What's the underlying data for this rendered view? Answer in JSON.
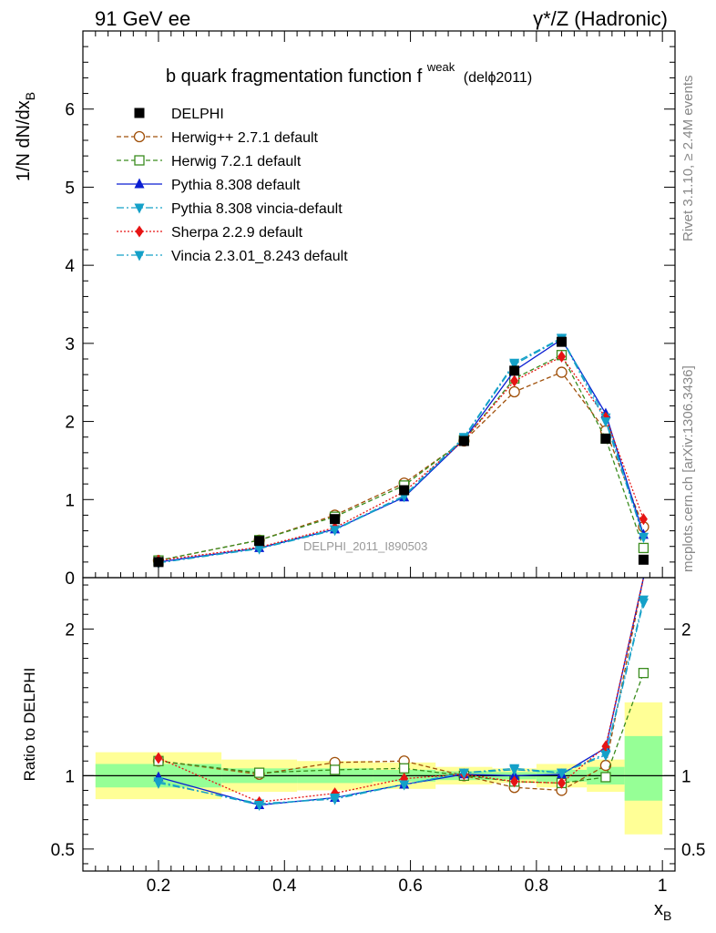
{
  "header": {
    "energy": "91 GeV ee",
    "process": "γ*/Z (Hadronic)",
    "title_main": "b quark fragmentation function f",
    "title_sup": "weak",
    "title_ref": "(delϕ2011)"
  },
  "side": {
    "rivet": "Rivet 3.1.10, ≥ 2.4M events",
    "mcplots": "mcplots.cern.ch [arXiv:1306.3436]"
  },
  "watermark": "DELPHI_2011_I890503",
  "main_ylabel_a": "1/N dN/dx",
  "main_ylabel_sub": "B",
  "ratio_ylabel": "Ratio to DELPHI",
  "xlabel_a": "x",
  "xlabel_sub": "B",
  "colors": {
    "data": "#000000",
    "herwigpp": "#a0500a",
    "herwig7": "#3a8c1e",
    "pythia": "#0a1ed2",
    "pythia_vincia": "#14a0c8",
    "sherpa": "#e61414",
    "vincia": "#14a0c8",
    "band_outer": "#ffff96",
    "band_inner": "#96ff96"
  },
  "chart_data": {
    "type": "line",
    "x": [
      0.2,
      0.36,
      0.48,
      0.59,
      0.685,
      0.765,
      0.84,
      0.91,
      0.97
    ],
    "xlim": [
      0.08,
      1.02
    ],
    "main": {
      "ylim": [
        0,
        7
      ],
      "yticks": [
        0,
        1,
        2,
        3,
        4,
        5,
        6
      ]
    },
    "ratio": {
      "ylim": [
        0.35,
        2.35
      ],
      "yticks": [
        0.5,
        1,
        2
      ],
      "ylabels_right": [
        "0.5",
        "1",
        "2"
      ]
    },
    "xticks": [
      0.2,
      0.4,
      0.6,
      0.8,
      1.0
    ],
    "xtick_labels": [
      "0.2",
      "0.4",
      "0.6",
      "0.8",
      "1"
    ],
    "data": {
      "name": "DELPHI",
      "values": [
        0.2,
        0.47,
        0.75,
        1.12,
        1.75,
        2.65,
        3.02,
        1.78,
        0.23
      ],
      "bins": [
        [
          0.1,
          0.3
        ],
        [
          0.3,
          0.42
        ],
        [
          0.42,
          0.54
        ],
        [
          0.54,
          0.64
        ],
        [
          0.64,
          0.73
        ],
        [
          0.73,
          0.8
        ],
        [
          0.8,
          0.88
        ],
        [
          0.88,
          0.94
        ],
        [
          0.94,
          1.0
        ]
      ],
      "band_outer": [
        [
          0.84,
          1.16
        ],
        [
          0.89,
          1.11
        ],
        [
          0.9,
          1.1
        ],
        [
          0.91,
          1.09
        ],
        [
          0.94,
          1.06
        ],
        [
          0.95,
          1.05
        ],
        [
          0.92,
          1.08
        ],
        [
          0.89,
          1.11
        ],
        [
          0.6,
          1.5
        ]
      ],
      "band_inner": [
        [
          0.92,
          1.08
        ],
        [
          0.95,
          1.05
        ],
        [
          0.95,
          1.05
        ],
        [
          0.96,
          1.04
        ],
        [
          0.97,
          1.03
        ],
        [
          0.975,
          1.025
        ],
        [
          0.96,
          1.04
        ],
        [
          0.94,
          1.06
        ],
        [
          0.83,
          1.27
        ]
      ]
    },
    "series": [
      {
        "name": "Herwig++ 2.7.1 default",
        "key": "herwigpp",
        "marker": "circle-open",
        "dash": "5,3",
        "values": [
          0.22,
          0.48,
          0.8,
          1.21,
          1.75,
          2.38,
          2.63,
          1.88,
          0.65
        ],
        "ratio": [
          1.1,
          1.01,
          1.09,
          1.1,
          1.0,
          0.92,
          0.9,
          1.07,
          2.85
        ]
      },
      {
        "name": "Herwig 7.2.1 default",
        "key": "herwig7",
        "marker": "square-open",
        "dash": "5,3",
        "values": [
          0.22,
          0.48,
          0.78,
          1.18,
          1.76,
          2.55,
          2.85,
          1.78,
          0.38
        ],
        "ratio": [
          1.1,
          1.02,
          1.04,
          1.05,
          1.0,
          0.96,
          0.95,
          0.99,
          1.7
        ]
      },
      {
        "name": "Pythia 8.308 default",
        "key": "pythia",
        "marker": "triangle-up",
        "dash": "",
        "values": [
          0.2,
          0.38,
          0.62,
          1.03,
          1.77,
          2.65,
          3.05,
          2.1,
          0.55
        ],
        "ratio": [
          0.99,
          0.8,
          0.85,
          0.94,
          1.01,
          1.0,
          1.01,
          1.19,
          2.36
        ]
      },
      {
        "name": "Pythia 8.308 vincia-default",
        "key": "pythia_vincia",
        "marker": "triangle-down",
        "dash": "8,3,2,3",
        "values": [
          0.19,
          0.38,
          0.62,
          1.05,
          1.8,
          2.75,
          3.07,
          2.05,
          0.52
        ],
        "ratio": [
          0.95,
          0.81,
          0.84,
          0.94,
          1.02,
          1.04,
          1.02,
          1.15,
          2.2
        ]
      },
      {
        "name": "Sherpa 2.2.9 default",
        "key": "sherpa",
        "marker": "diamond",
        "dash": "2,2",
        "values": [
          0.22,
          0.39,
          0.64,
          1.1,
          1.76,
          2.52,
          2.83,
          2.05,
          0.75
        ],
        "ratio": [
          1.12,
          0.82,
          0.88,
          0.98,
          1.01,
          0.96,
          0.95,
          1.2,
          3.2
        ]
      },
      {
        "name": "Vincia 2.3.01_8.243 default",
        "key": "vincia",
        "marker": "triangle-down",
        "dash": "8,3,2,3",
        "values": [
          0.19,
          0.37,
          0.61,
          1.04,
          1.79,
          2.73,
          3.06,
          2.0,
          0.52
        ],
        "ratio": [
          0.96,
          0.8,
          0.85,
          0.94,
          1.02,
          1.05,
          1.02,
          1.14,
          2.18
        ]
      }
    ]
  }
}
